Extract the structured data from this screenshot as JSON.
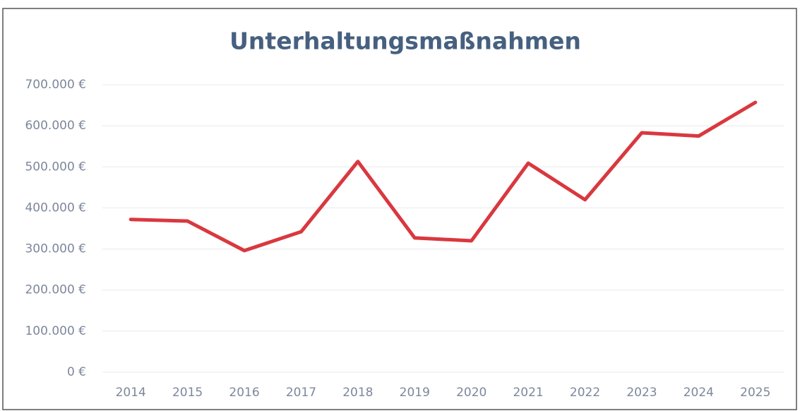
{
  "chart_data": {
    "type": "line",
    "title": "Unterhaltungsmaßnahmen",
    "categories": [
      "2014",
      "2015",
      "2016",
      "2017",
      "2018",
      "2019",
      "2020",
      "2021",
      "2022",
      "2023",
      "2024",
      "2025"
    ],
    "values": [
      372000,
      368000,
      296000,
      342000,
      513000,
      327000,
      320000,
      509000,
      420000,
      583000,
      575000,
      657000
    ],
    "color": "#d9383f",
    "ylim": [
      0,
      700000
    ],
    "yticks": [
      {
        "value": 0,
        "label": "0 €"
      },
      {
        "value": 100000,
        "label": "100.000 €"
      },
      {
        "value": 200000,
        "label": "200.000 €"
      },
      {
        "value": 300000,
        "label": "300.000 €"
      },
      {
        "value": 400000,
        "label": "400.000 €"
      },
      {
        "value": 500000,
        "label": "500.000 €"
      },
      {
        "value": 600000,
        "label": "600.000 €"
      },
      {
        "value": 700000,
        "label": "700.000 €"
      }
    ],
    "grid": true
  }
}
